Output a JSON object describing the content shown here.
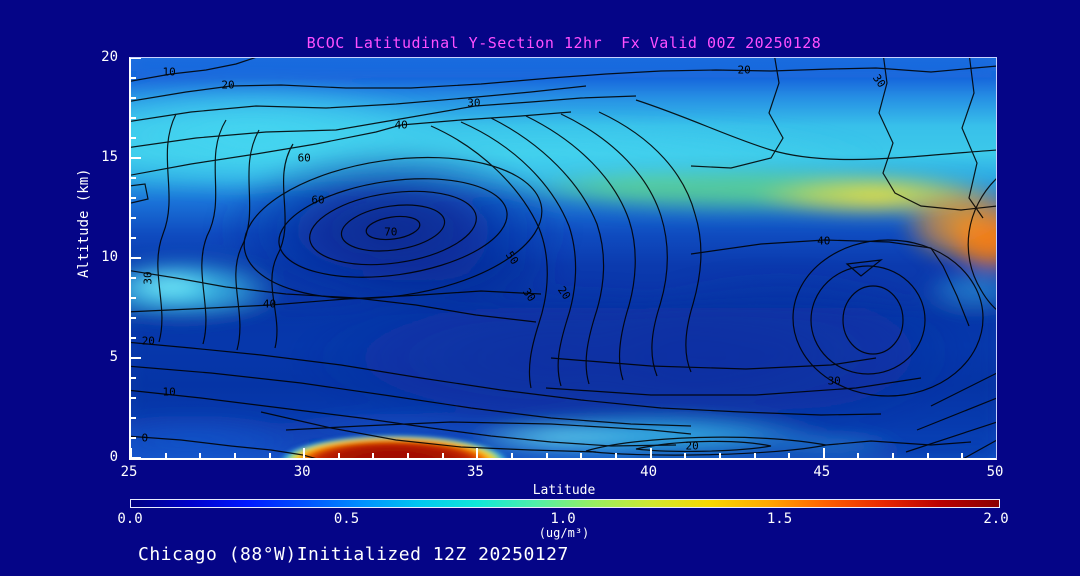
{
  "window": {
    "background": "#050587"
  },
  "title": {
    "text": "BCOC Latitudinal Y-Section 12hr  Fx Valid 00Z 20250128",
    "color": "#ff50ff"
  },
  "footer": {
    "text": "Chicago (88°W)Initialized 12Z 20250127"
  },
  "chart_data": {
    "type": "heatmap",
    "subtype": "filled-contour-cross-section",
    "title": "BCOC Latitudinal Y-Section 12hr  Fx Valid 00Z 20250128",
    "xlabel": "Latitude",
    "ylabel": "Altitude (km)",
    "xlim": [
      25,
      50
    ],
    "ylim": [
      0,
      20
    ],
    "x_ticks": [
      25,
      30,
      35,
      40,
      45,
      50
    ],
    "y_ticks": [
      0,
      5,
      10,
      15,
      20
    ],
    "x_minor_step": 1,
    "y_minor_step": 1,
    "grid": false,
    "contour_line_color": "#000000",
    "contour_levels": [
      0,
      10,
      20,
      30,
      40,
      50,
      60,
      70
    ],
    "contour_labels": [
      {
        "value": "10",
        "lat": 26.1,
        "alt_km": 19.3,
        "rot": 0
      },
      {
        "value": "20",
        "lat": 27.8,
        "alt_km": 18.65,
        "rot": 0
      },
      {
        "value": "30",
        "lat": 34.9,
        "alt_km": 17.75,
        "rot": 0
      },
      {
        "value": "40",
        "lat": 32.8,
        "alt_km": 16.65,
        "rot": 0
      },
      {
        "value": "60",
        "lat": 30.0,
        "alt_km": 15.0,
        "rot": 0
      },
      {
        "value": "60",
        "lat": 30.4,
        "alt_km": 12.9,
        "rot": 0
      },
      {
        "value": "70",
        "lat": 32.5,
        "alt_km": 11.3,
        "rot": 0
      },
      {
        "value": "20",
        "lat": 42.7,
        "alt_km": 19.4,
        "rot": 0
      },
      {
        "value": "30",
        "lat": 46.6,
        "alt_km": 18.85,
        "rot": 55
      },
      {
        "value": "40",
        "lat": 45.0,
        "alt_km": 10.85,
        "rot": 0
      },
      {
        "value": "50",
        "lat": 36.0,
        "alt_km": 10.0,
        "rot": 55
      },
      {
        "value": "30",
        "lat": 36.5,
        "alt_km": 8.15,
        "rot": 55
      },
      {
        "value": "20",
        "lat": 37.5,
        "alt_km": 8.25,
        "rot": 55
      },
      {
        "value": "30",
        "lat": 25.5,
        "alt_km": 9.0,
        "rot": -90
      },
      {
        "value": "40",
        "lat": 29.0,
        "alt_km": 7.7,
        "rot": 0
      },
      {
        "value": "20",
        "lat": 25.5,
        "alt_km": 5.85,
        "rot": 0
      },
      {
        "value": "10",
        "lat": 26.1,
        "alt_km": 3.3,
        "rot": 0
      },
      {
        "value": "0",
        "lat": 25.4,
        "alt_km": 1.0,
        "rot": 0
      },
      {
        "value": "30",
        "lat": 45.3,
        "alt_km": 3.85,
        "rot": 0
      },
      {
        "value": "20",
        "lat": 41.2,
        "alt_km": 0.6,
        "rot": 0
      }
    ],
    "colorbar": {
      "min": 0.0,
      "max": 2.0,
      "tick_labels": [
        "0.0",
        "0.5",
        "1.0",
        "1.5",
        "2.0"
      ],
      "units": "(ug/m³)",
      "palette": [
        "#00007f",
        "#0000c8",
        "#0018ff",
        "#0050ff",
        "#0090ff",
        "#00c8f0",
        "#10e8d8",
        "#50f0a8",
        "#98f060",
        "#d0e830",
        "#f8d800",
        "#ffa800",
        "#ff6000",
        "#e82800",
        "#b80000",
        "#8b0000"
      ]
    },
    "notable_features": [
      {
        "name": "surface-maximum",
        "lat_range": [
          29,
          35.5
        ],
        "alt_km_range": [
          0,
          0.8
        ],
        "approx_value": "> 2.0 ug/m3 (dark red)"
      },
      {
        "name": "midlevel-closed-maximum",
        "lat": 32.5,
        "alt_km": 11.5,
        "contour": "70"
      },
      {
        "name": "upper-right-plume",
        "lat_range": [
          44,
          50
        ],
        "alt_km_range": [
          9,
          13
        ],
        "approx_value": "1.2-1.7 ug/m3 (yellow-orange)"
      },
      {
        "name": "upper-cyan-layer",
        "lat_range": [
          25,
          50
        ],
        "alt_km_range": [
          13,
          18
        ],
        "approx_value": "0.6-1.0 ug/m3 (cyan-green)"
      },
      {
        "name": "low-level-cyan-band",
        "lat_range": [
          36,
          45
        ],
        "alt_km_range": [
          0.5,
          1.5
        ],
        "approx_value": "~0.8 ug/m3 (cyan)"
      }
    ]
  }
}
